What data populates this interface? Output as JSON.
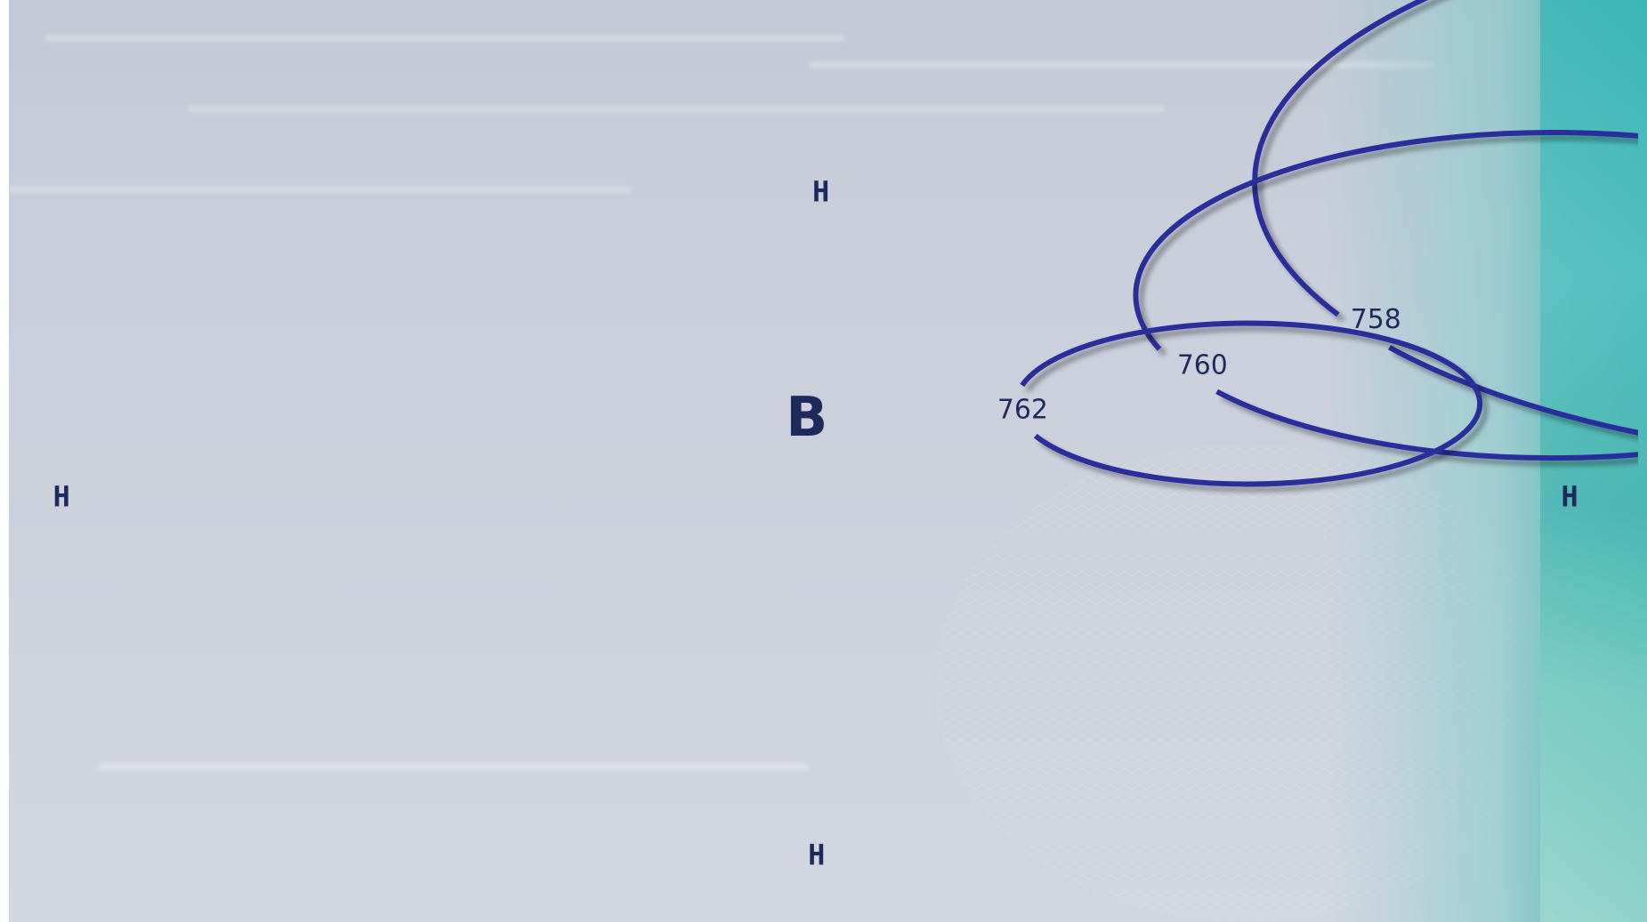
{
  "diagram": {
    "center_label": "В",
    "isobars": [
      {
        "value": "762"
      },
      {
        "value": "760"
      },
      {
        "value": "758"
      }
    ],
    "outer_labels": {
      "top": "Н",
      "left": "Н",
      "right": "Н",
      "bottom": "Н"
    }
  },
  "colors": {
    "isobar": "#2a2f9a",
    "text": "#1f2a5c",
    "background": "#c9cfdb"
  }
}
